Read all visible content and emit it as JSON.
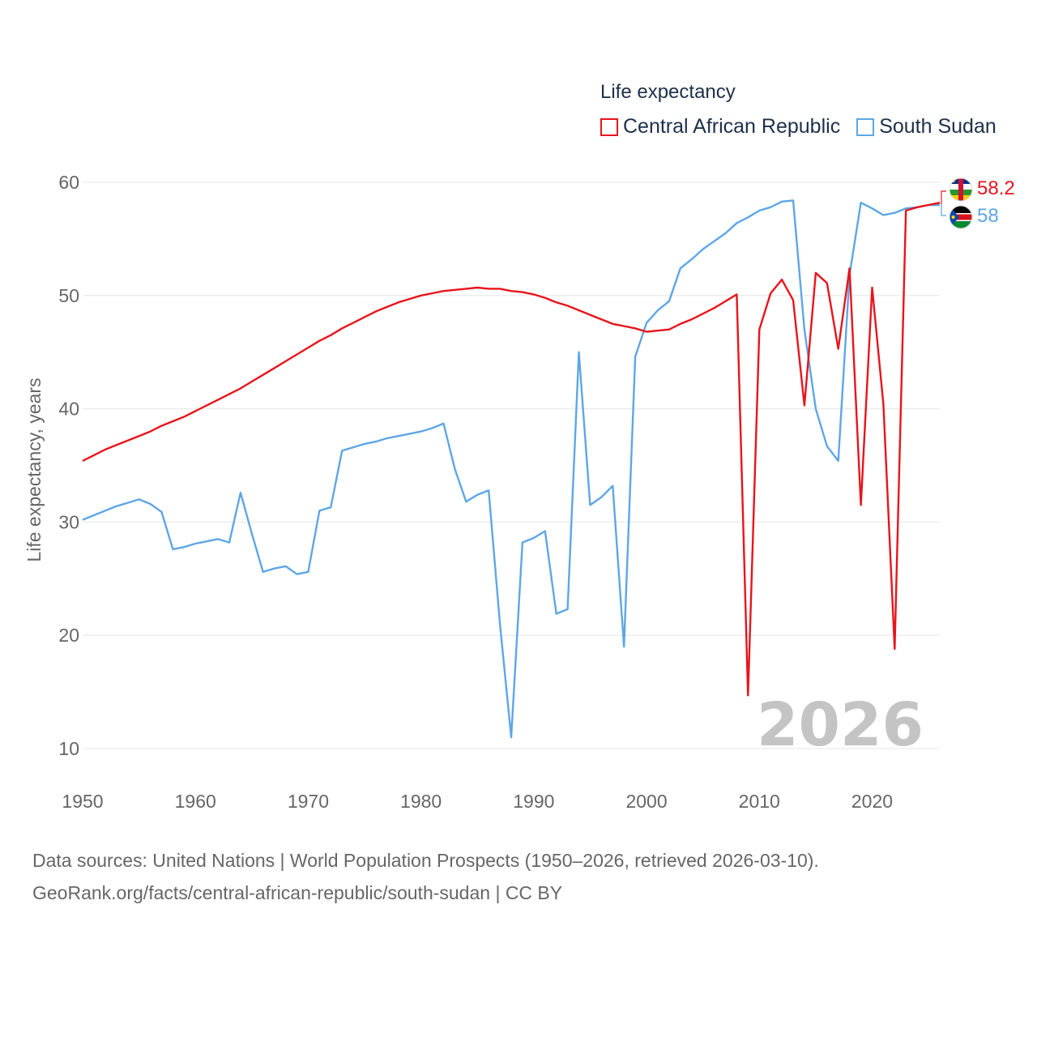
{
  "chart_data": {
    "type": "line",
    "legend_title": "Life expectancy",
    "ylabel": "Life expectancy, years",
    "xlabel": "",
    "xlim": [
      1950,
      2026
    ],
    "ylim": [
      5,
      64
    ],
    "x_ticks": [
      1950,
      1960,
      1970,
      1980,
      1990,
      2000,
      2010,
      2020
    ],
    "y_ticks": [
      10,
      20,
      30,
      40,
      50,
      60
    ],
    "grid": true,
    "legend_position": "top-right",
    "current_year_label": "2026",
    "series": [
      {
        "name": "Central African Republic",
        "color": "#e8141c",
        "flag_icon": "central-african-republic-flag-icon",
        "end_label": "58.2",
        "x": [
          1950,
          1951,
          1952,
          1953,
          1954,
          1955,
          1956,
          1957,
          1958,
          1959,
          1960,
          1961,
          1962,
          1963,
          1964,
          1965,
          1966,
          1967,
          1968,
          1969,
          1970,
          1971,
          1972,
          1973,
          1974,
          1975,
          1976,
          1977,
          1978,
          1979,
          1980,
          1981,
          1982,
          1983,
          1984,
          1985,
          1986,
          1987,
          1988,
          1989,
          1990,
          1991,
          1992,
          1993,
          1994,
          1995,
          1996,
          1997,
          1998,
          1999,
          2000,
          2001,
          2002,
          2003,
          2004,
          2005,
          2006,
          2007,
          2008,
          2009,
          2010,
          2011,
          2012,
          2013,
          2014,
          2015,
          2016,
          2017,
          2018,
          2019,
          2020,
          2021,
          2022,
          2023,
          2024,
          2025,
          2026
        ],
        "values": [
          35.4,
          35.9,
          36.4,
          36.8,
          37.2,
          37.6,
          38.0,
          38.5,
          38.9,
          39.3,
          39.8,
          40.3,
          40.8,
          41.3,
          41.8,
          42.4,
          43.0,
          43.6,
          44.2,
          44.8,
          45.4,
          46.0,
          46.5,
          47.1,
          47.6,
          48.1,
          48.6,
          49.0,
          49.4,
          49.7,
          50.0,
          50.2,
          50.4,
          50.5,
          50.6,
          50.7,
          50.6,
          50.6,
          50.4,
          50.3,
          50.1,
          49.8,
          49.4,
          49.1,
          48.7,
          48.3,
          47.9,
          47.5,
          47.3,
          47.1,
          46.8,
          46.9,
          47.0,
          47.5,
          47.9,
          48.4,
          48.9,
          49.5,
          50.1,
          14.7,
          47.0,
          50.2,
          51.4,
          49.6,
          40.3,
          52.0,
          51.1,
          45.3,
          52.4,
          31.5,
          50.7,
          40.4,
          18.8,
          57.5,
          57.8,
          58.0,
          58.2
        ]
      },
      {
        "name": "South Sudan",
        "color": "#5ea6e6",
        "flag_icon": "south-sudan-flag-icon",
        "end_label": "58",
        "x": [
          1950,
          1951,
          1952,
          1953,
          1954,
          1955,
          1956,
          1957,
          1958,
          1959,
          1960,
          1961,
          1962,
          1963,
          1964,
          1965,
          1966,
          1967,
          1968,
          1969,
          1970,
          1971,
          1972,
          1973,
          1974,
          1975,
          1976,
          1977,
          1978,
          1979,
          1980,
          1981,
          1982,
          1983,
          1984,
          1985,
          1986,
          1987,
          1988,
          1989,
          1990,
          1991,
          1992,
          1993,
          1994,
          1995,
          1996,
          1997,
          1998,
          1999,
          2000,
          2001,
          2002,
          2003,
          2004,
          2005,
          2006,
          2007,
          2008,
          2009,
          2010,
          2011,
          2012,
          2013,
          2014,
          2015,
          2016,
          2017,
          2018,
          2019,
          2020,
          2021,
          2022,
          2023,
          2024,
          2025,
          2026
        ],
        "values": [
          30.2,
          30.6,
          31.0,
          31.4,
          31.7,
          32.0,
          31.6,
          30.9,
          27.6,
          27.8,
          28.1,
          28.3,
          28.5,
          28.2,
          32.6,
          29.0,
          25.6,
          25.9,
          26.1,
          25.4,
          25.6,
          31.0,
          31.3,
          36.3,
          36.6,
          36.9,
          37.1,
          37.4,
          37.6,
          37.8,
          38.0,
          38.3,
          38.7,
          34.7,
          31.8,
          32.4,
          32.8,
          21.0,
          11.0,
          28.2,
          28.6,
          29.2,
          21.9,
          22.3,
          45.0,
          31.5,
          32.2,
          33.2,
          19.0,
          44.6,
          47.6,
          48.7,
          49.5,
          52.4,
          53.2,
          54.1,
          54.8,
          55.5,
          56.4,
          56.9,
          57.5,
          57.8,
          58.3,
          58.4,
          47.0,
          40.0,
          36.7,
          35.4,
          51.8,
          58.2,
          57.7,
          57.1,
          57.3,
          57.7,
          57.8,
          58.0,
          58.0
        ]
      }
    ]
  },
  "sources": {
    "line1": "Data sources: United Nations | World Population Prospects (1950–2026, retrieved 2026-03-10).",
    "line2": "GeoRank.org/facts/central-african-republic/south-sudan | CC BY"
  }
}
